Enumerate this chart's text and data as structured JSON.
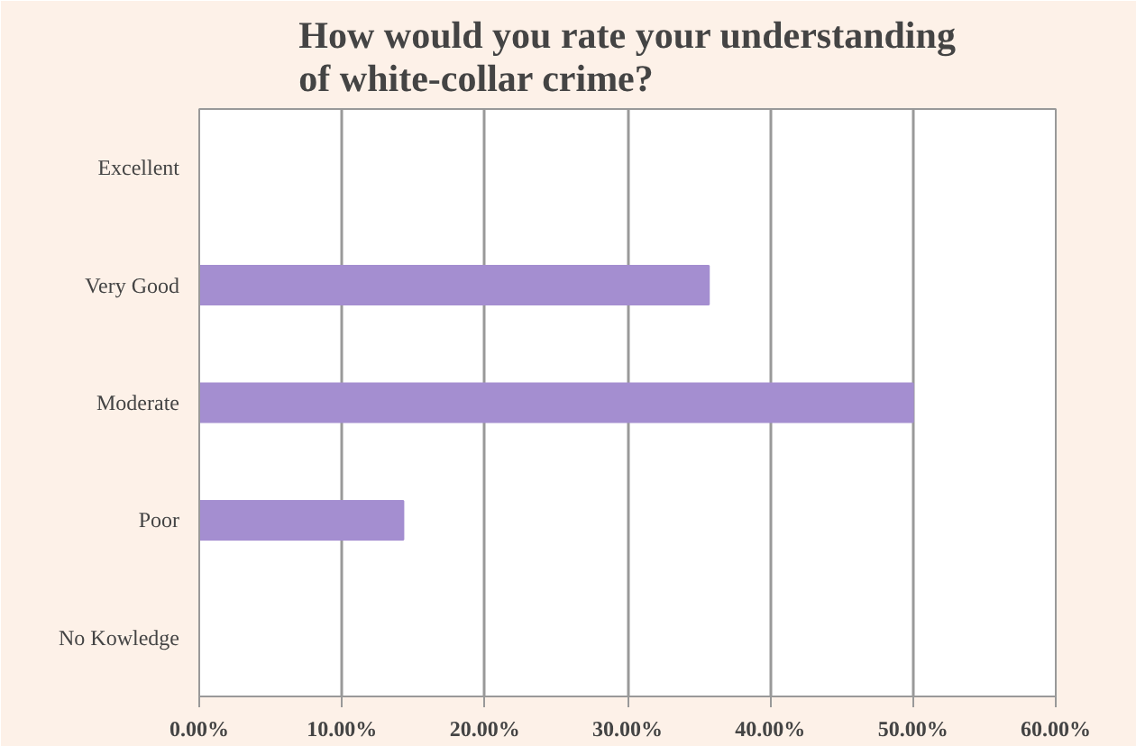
{
  "chart_data": {
    "type": "bar",
    "orientation": "horizontal",
    "title": "How would you rate your understanding\nof white-collar crime?",
    "categories": [
      "Excellent",
      "Very Good",
      "Moderate",
      "Poor",
      "No Kowledge"
    ],
    "values": [
      0,
      35.7,
      50,
      14.3,
      0
    ],
    "color": "#a48ed0",
    "xlim": [
      0,
      60
    ],
    "xticks": [
      {
        "value": 0,
        "label": "0.00%"
      },
      {
        "value": 10,
        "label": "10.00%"
      },
      {
        "value": 20,
        "label": "20.00%"
      },
      {
        "value": 30,
        "label": "30.00%"
      },
      {
        "value": 40,
        "label": "40.00%"
      },
      {
        "value": 50,
        "label": "50.00%"
      },
      {
        "value": 60,
        "label": "60.00%"
      }
    ],
    "grid": "x"
  }
}
